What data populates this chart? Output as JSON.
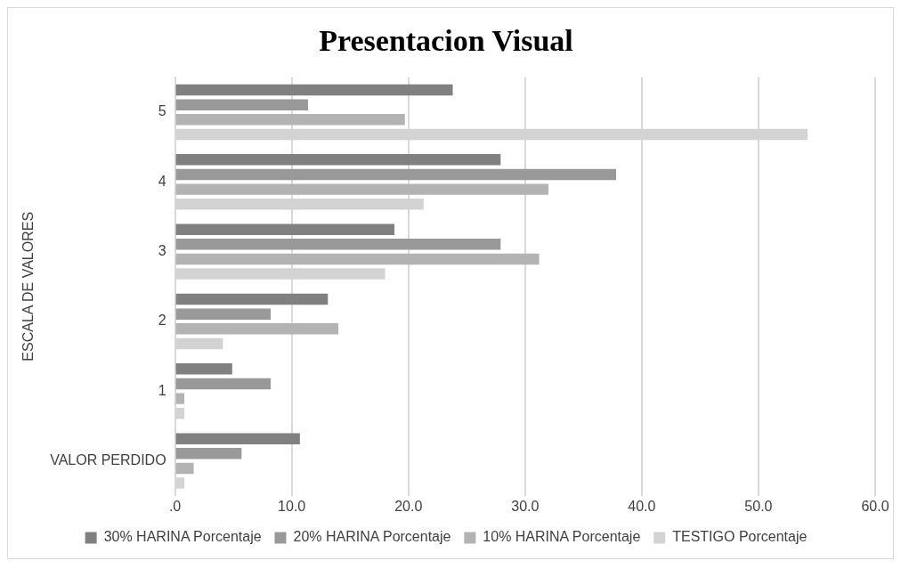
{
  "chart_data": {
    "type": "bar",
    "orientation": "horizontal",
    "title": "Presentacion Visual",
    "ylabel": "ESCALA DE VALORES",
    "categories": [
      "5",
      "4",
      "3",
      "2",
      "1",
      "VALOR PERDIDO"
    ],
    "series": [
      {
        "name": "30% HARINA Porcentaje",
        "color": "#808080",
        "values": [
          23.8,
          27.9,
          18.8,
          13.1,
          4.9,
          10.7
        ]
      },
      {
        "name": "20% HARINA Porcentaje",
        "color": "#999999",
        "values": [
          11.4,
          37.8,
          27.9,
          8.2,
          8.2,
          5.7
        ]
      },
      {
        "name": "10% HARINA Porcentaje",
        "color": "#b3b3b3",
        "values": [
          19.7,
          32.0,
          31.2,
          14.0,
          0.8,
          1.6
        ]
      },
      {
        "name": "TESTIGO Porcentaje",
        "color": "#d3d3d3",
        "values": [
          54.2,
          21.3,
          18.0,
          4.1,
          0.8,
          0.8
        ]
      }
    ],
    "xlim": [
      0,
      60
    ],
    "xticks": [
      {
        "value": 0,
        "label": ".0"
      },
      {
        "value": 10,
        "label": "10.0"
      },
      {
        "value": 20,
        "label": "20.0"
      },
      {
        "value": 30,
        "label": "30.0"
      },
      {
        "value": 40,
        "label": "40.0"
      },
      {
        "value": 50,
        "label": "50.0"
      },
      {
        "value": 60,
        "label": "60.0"
      }
    ],
    "grid": "x",
    "legend": "bottom"
  }
}
